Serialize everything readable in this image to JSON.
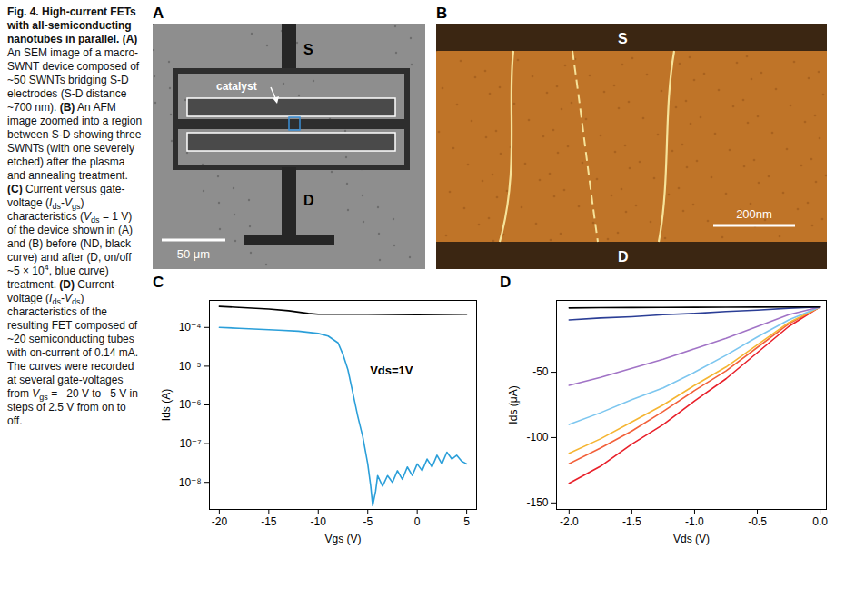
{
  "figure": {
    "caption": [
      {
        "text": "Fig. 4.",
        "style": "bold"
      },
      {
        "text": " High-current FETs with all-semiconducting nanotubes in parallel. ",
        "style": "bold"
      },
      {
        "text": "(A)",
        "style": "bold"
      },
      {
        "text": " An SEM image of a macro-SWNT device composed of ~50 SWNTs bridging S-D electrodes (S-D distance ~700 nm). ",
        "style": "plain"
      },
      {
        "text": "(B)",
        "style": "bold"
      },
      {
        "text": " An AFM image zoomed into a region between S-D showing three SWNTs (with one severely etched) after the plasma and annealing treatment. ",
        "style": "plain"
      },
      {
        "text": "(C)",
        "style": "bold"
      },
      {
        "text": " Current versus gate-voltage (",
        "style": "plain"
      },
      {
        "text": "I",
        "style": "italic"
      },
      {
        "text": "ds",
        "style": "sub"
      },
      {
        "text": "-",
        "style": "plain"
      },
      {
        "text": "V",
        "style": "italic"
      },
      {
        "text": "gs",
        "style": "sub"
      },
      {
        "text": ") characteristics (",
        "style": "plain"
      },
      {
        "text": "V",
        "style": "italic"
      },
      {
        "text": "ds",
        "style": "sub"
      },
      {
        "text": " = 1 V) of the device shown in (A) and (B) before (ND, black curve) and after (D, on/off ~5 × 10",
        "style": "plain"
      },
      {
        "text": "4",
        "style": "sup"
      },
      {
        "text": ", blue curve) treatment. ",
        "style": "plain"
      },
      {
        "text": "(D)",
        "style": "bold"
      },
      {
        "text": " Current-voltage (",
        "style": "plain"
      },
      {
        "text": "I",
        "style": "italic"
      },
      {
        "text": "ds",
        "style": "sub"
      },
      {
        "text": "-",
        "style": "plain"
      },
      {
        "text": "V",
        "style": "italic"
      },
      {
        "text": "ds",
        "style": "sub"
      },
      {
        "text": ") characteristics of the resulting FET composed of ~20 semiconducting tubes with on-current of 0.14 mA. The curves were recorded at several gate-voltages from ",
        "style": "plain"
      },
      {
        "text": "V",
        "style": "italic"
      },
      {
        "text": "gs",
        "style": "sub"
      },
      {
        "text": " = –20 V to –5 V in steps of 2.5 V from on to off.",
        "style": "plain"
      }
    ],
    "panel_a": {
      "letter": "A",
      "electrode_top": "S",
      "electrode_bottom": "D",
      "pointer": "catalyst",
      "scale_bar": "50 μm"
    },
    "panel_b": {
      "letter": "B",
      "electrode_top": "S",
      "electrode_bottom": "D",
      "scale_bar": "200nm"
    }
  },
  "chart_data": [
    {
      "type": "line",
      "panel": "C",
      "log": "y",
      "xlabel": "Vgs (V)",
      "ylabel": "Ids (A)",
      "annotation": "Vds=1V",
      "xlim": [
        -21,
        6
      ],
      "xticks": [
        -20,
        -15,
        -10,
        -5,
        0,
        5
      ],
      "ylim": [
        2e-09,
        0.0005
      ],
      "yticks": [
        {
          "value": 1e-08,
          "label": "10⁻⁸"
        },
        {
          "value": 1e-07,
          "label": "10⁻⁷"
        },
        {
          "value": 1e-06,
          "label": "10⁻⁶"
        },
        {
          "value": 1e-05,
          "label": "10⁻⁵"
        },
        {
          "value": 0.0001,
          "label": "10⁻⁴"
        }
      ],
      "grid": false,
      "series": [
        {
          "color": "#000000",
          "x": [
            -20,
            -18,
            -15,
            -13,
            -11,
            -10,
            -5,
            0,
            5
          ],
          "values": [
            0.00035,
            0.00033,
            0.0003,
            0.00027,
            0.00023,
            0.00022,
            0.00022,
            0.000215,
            0.00022
          ]
        },
        {
          "color": "#2b9fd9",
          "x": [
            -20,
            -18,
            -16,
            -14,
            -12,
            -10,
            -9,
            -8,
            -7.5,
            -7,
            -6.5,
            -6,
            -5.5,
            -5,
            -4.7,
            -4.5,
            -4.2,
            -4,
            -3.5,
            -3,
            -2.5,
            -2,
            -1.5,
            -1,
            -0.5,
            0,
            0.5,
            1,
            1.5,
            2,
            2.5,
            3,
            3.5,
            4,
            4.5,
            5
          ],
          "values": [
            0.0001,
            9.5e-05,
            9e-05,
            8.5e-05,
            8e-05,
            7e-05,
            6e-05,
            4e-05,
            2e-05,
            8e-06,
            2e-06,
            5e-07,
            1.5e-07,
            3e-08,
            8e-09,
            2.5e-09,
            6e-09,
            1.5e-08,
            8e-09,
            1.5e-08,
            1e-08,
            2e-08,
            1.2e-08,
            2.5e-08,
            1.5e-08,
            3e-08,
            2e-08,
            4e-08,
            2.5e-08,
            5e-08,
            3e-08,
            6e-08,
            4e-08,
            5e-08,
            3.5e-08,
            3e-08
          ]
        }
      ]
    },
    {
      "type": "line",
      "panel": "D",
      "xlabel": "Vds (V)",
      "ylabel": "Ids (μA)",
      "xlim": [
        -2.1,
        0.05
      ],
      "xticks": [
        {
          "value": -2,
          "label": "-2.0"
        },
        {
          "value": -1.5,
          "label": "-1.5"
        },
        {
          "value": -1,
          "label": "-1.0"
        },
        {
          "value": -0.5,
          "label": "-0.5"
        },
        {
          "value": 0,
          "label": "0.0"
        }
      ],
      "ylim": [
        -155,
        5
      ],
      "yticks": [
        -150,
        -100,
        -50
      ],
      "grid": false,
      "x": [
        0,
        -0.25,
        -0.5,
        -0.75,
        -1,
        -1.25,
        -1.5,
        -1.75,
        -2
      ],
      "series": [
        {
          "color": "#e8202a",
          "values": [
            0,
            -15,
            -35,
            -55,
            -72,
            -90,
            -105,
            -122,
            -135
          ]
        },
        {
          "color": "#f2603a",
          "values": [
            0,
            -13,
            -31,
            -49,
            -64,
            -80,
            -95,
            -108,
            -120
          ]
        },
        {
          "color": "#f5b532",
          "values": [
            0,
            -12,
            -29,
            -46,
            -60,
            -75,
            -88,
            -101,
            -112
          ]
        },
        {
          "color": "#7cc6ef",
          "values": [
            0,
            -10,
            -23,
            -37,
            -50,
            -62,
            -71,
            -81,
            -90
          ]
        },
        {
          "color": "#a173c6",
          "values": [
            0,
            -6,
            -15,
            -24,
            -32,
            -40,
            -47,
            -54,
            -60
          ]
        },
        {
          "color": "#2b3e96",
          "values": [
            0,
            -1,
            -2.5,
            -3.5,
            -5,
            -6,
            -7.5,
            -8.5,
            -10
          ]
        },
        {
          "color": "#000000",
          "values": [
            0,
            0,
            -0.1,
            -0.2,
            -0.3,
            -0.4,
            -0.5,
            -0.6,
            -0.8
          ]
        }
      ]
    }
  ]
}
